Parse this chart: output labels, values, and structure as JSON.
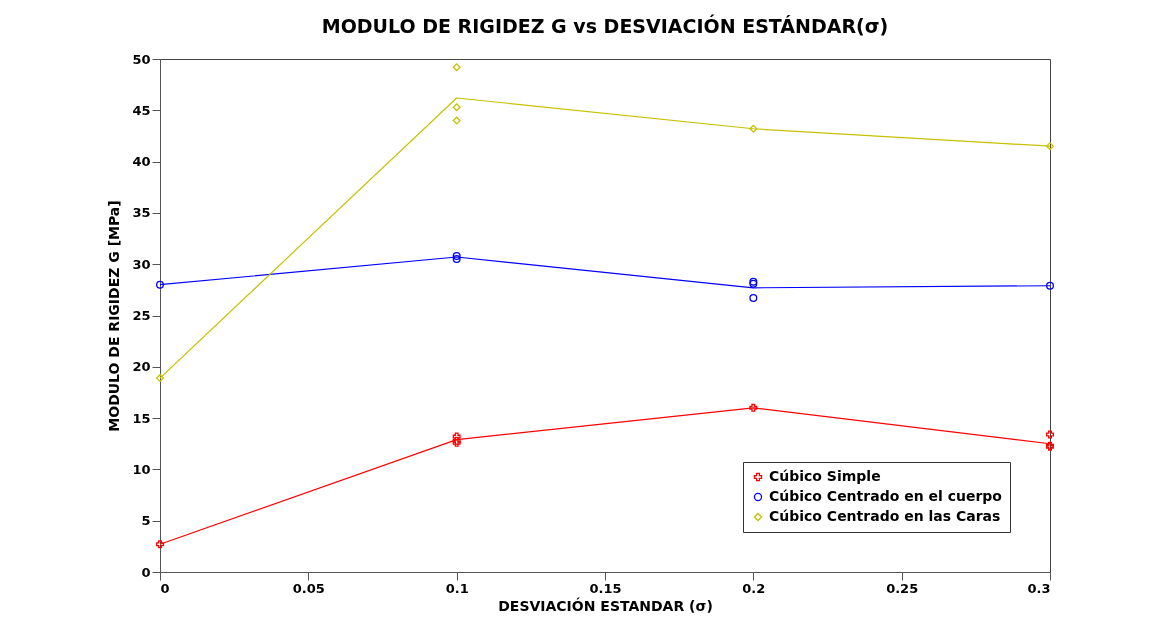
{
  "chart_data": {
    "type": "scatter",
    "title": "MODULO DE RIGIDEZ G vs DESVIACIÓN ESTÁNDAR(σ)",
    "xlabel": "DESVIACIÓN ESTANDAR (σ)",
    "ylabel": "MODULO DE RIGIDEZ G [MPa]",
    "xlim": [
      0,
      0.3
    ],
    "xticks": [
      0,
      0.05,
      0.1,
      0.15,
      0.2,
      0.25,
      0.3
    ],
    "ylim": [
      0,
      50
    ],
    "yticks": [
      0,
      5,
      10,
      15,
      20,
      25,
      30,
      35,
      40,
      45,
      50
    ],
    "grid": false,
    "legend": "bottom right",
    "series": [
      {
        "name": "Cúbico Simple",
        "color": "#ff0000",
        "marker": "cross",
        "x": [
          0,
          0.1,
          0.1,
          0.1,
          0.2,
          0.3,
          0.3,
          0.3
        ],
        "values": [
          2.7,
          13.2,
          12.8,
          12.6,
          16.0,
          13.4,
          12.3,
          12.2
        ]
      },
      {
        "name": "Cúbico Centrado en el cuerpo",
        "color": "#0000ff",
        "marker": "circle",
        "x": [
          0,
          0.1,
          0.1,
          0.2,
          0.2,
          0.2,
          0.3
        ],
        "values": [
          28.0,
          30.8,
          30.5,
          28.3,
          28.1,
          26.7,
          27.9
        ]
      },
      {
        "name": "Cúbico Centrado en las Caras",
        "color": "#c8c000",
        "marker": "diamond",
        "x": [
          0,
          0.1,
          0.1,
          0.1,
          0.2,
          0.3
        ],
        "values": [
          18.9,
          49.2,
          45.3,
          44.0,
          43.2,
          41.5
        ]
      },
      {
        "type": "line",
        "color": "#ff0000",
        "x": [
          0,
          0.1,
          0.2,
          0.3
        ],
        "values": [
          2.7,
          12.9,
          16.0,
          12.5
        ]
      },
      {
        "type": "line",
        "color": "#0000ff",
        "x": [
          0,
          0.1,
          0.2,
          0.3
        ],
        "values": [
          28.0,
          30.7,
          27.7,
          27.9
        ]
      },
      {
        "type": "line",
        "color": "#c8c000",
        "x": [
          0,
          0.1,
          0.2,
          0.3
        ],
        "values": [
          18.9,
          46.2,
          43.2,
          41.5
        ]
      }
    ]
  }
}
